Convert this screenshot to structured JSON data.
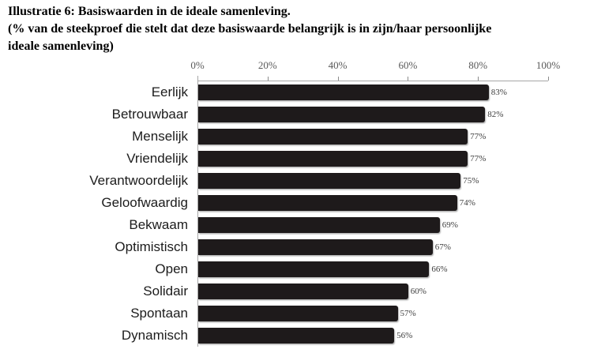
{
  "header": {
    "title": "Illustratie 6: Basiswaarden in de ideale samenleving.",
    "subtitle_lines": [
      "(% van de steekproef die stelt dat deze basiswaarde belangrijk is in zijn/haar persoonlijke",
      "ideale samenleving)"
    ]
  },
  "chart_data": {
    "type": "bar",
    "orientation": "horizontal",
    "title": "Illustratie 6: Basiswaarden in de ideale samenleving.",
    "subtitle": "(% van de steekproef die stelt dat deze basiswaarde belangrijk is in zijn/haar persoonlijke ideale samenleving)",
    "categories": [
      "Eerlijk",
      "Betrouwbaar",
      "Menselijk",
      "Vriendelijk",
      "Verantwoordelijk",
      "Geloofwaardig",
      "Bekwaam",
      "Optimistisch",
      "Open",
      "Solidair",
      "Spontaan",
      "Dynamisch"
    ],
    "values": [
      83,
      82,
      77,
      77,
      75,
      74,
      69,
      67,
      66,
      60,
      57,
      56
    ],
    "value_labels": [
      "83%",
      "82%",
      "77%",
      "77%",
      "75%",
      "74%",
      "69%",
      "67%",
      "66%",
      "60%",
      "57%",
      "56%"
    ],
    "x_ticks": [
      "0%",
      "20%",
      "40%",
      "60%",
      "80%",
      "100%"
    ],
    "xlim": [
      0,
      100
    ],
    "grid": false,
    "legend": false,
    "axis_position": "top",
    "bar_color": "#1e1a1b",
    "axis_line_color": "#a6a6a6",
    "tick_mark_color": "#8c8c8c",
    "tick_label_color": "#595959",
    "category_label_color": "#1c1c1c",
    "value_label_color": "#3d3d3d"
  }
}
